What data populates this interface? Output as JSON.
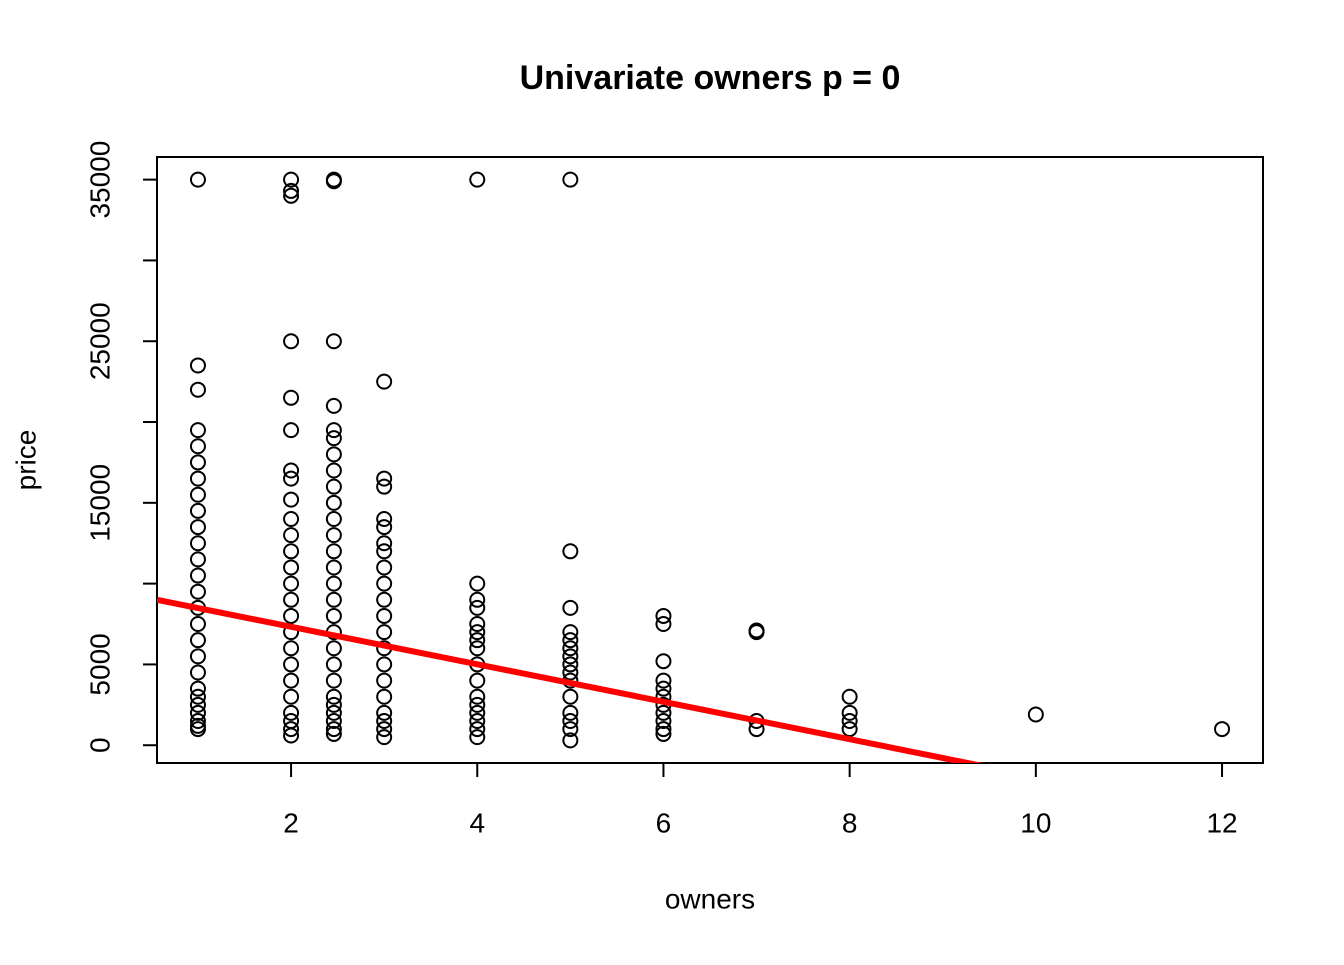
{
  "chart_data": {
    "type": "scatter",
    "title": "Univariate owners p = 0",
    "x_label": "owners",
    "y_label": "price",
    "x": [
      1,
      1,
      1,
      1,
      1,
      1,
      1,
      1,
      1,
      1,
      1,
      1,
      1,
      1,
      1,
      1,
      1,
      1,
      1,
      1,
      1,
      1,
      1,
      1,
      1,
      1,
      2,
      2,
      2,
      2,
      2,
      2,
      2,
      2,
      2,
      2,
      2,
      2,
      2,
      2,
      2,
      2,
      2,
      2,
      2,
      2,
      2,
      2,
      2,
      2,
      2,
      2.46,
      2.46,
      2.46,
      2.46,
      2.46,
      2.46,
      2.46,
      2.46,
      2.46,
      2.46,
      2.46,
      2.46,
      2.46,
      2.46,
      2.46,
      2.46,
      2.46,
      2.46,
      2.46,
      2.46,
      2.46,
      2.46,
      2.46,
      2.46,
      2.46,
      2.46,
      2.46,
      3,
      3,
      3,
      3,
      3,
      3,
      3,
      3,
      3,
      3,
      3,
      3,
      3,
      3,
      3,
      3,
      3,
      3,
      3,
      3,
      4,
      4,
      4,
      4,
      4,
      4,
      4,
      4,
      4,
      4,
      4,
      4,
      4,
      4,
      4,
      4,
      5,
      5,
      5,
      5,
      5,
      5,
      5,
      5,
      5,
      5,
      5,
      5,
      5,
      5,
      5,
      6,
      6,
      6,
      6,
      6,
      6,
      6,
      6,
      6,
      6,
      6,
      7,
      7,
      7,
      7,
      8,
      8,
      8,
      8,
      10,
      12
    ],
    "values": [
      35000,
      23500,
      22000,
      19500,
      18500,
      17500,
      16500,
      15500,
      14500,
      13500,
      12500,
      11500,
      10500,
      9500,
      8500,
      7500,
      6500,
      5500,
      4500,
      3500,
      3000,
      2500,
      2000,
      1500,
      1200,
      1000,
      35000,
      34300,
      34000,
      25000,
      21500,
      19500,
      17000,
      16500,
      15200,
      14000,
      13000,
      12000,
      11000,
      10000,
      9000,
      8000,
      7000,
      6000,
      5000,
      4000,
      3000,
      2000,
      1500,
      1000,
      600,
      35000,
      34900,
      25000,
      21000,
      19500,
      19000,
      18000,
      17000,
      16000,
      15000,
      14000,
      13000,
      12000,
      11000,
      10000,
      9000,
      8000,
      7000,
      6000,
      5000,
      4000,
      3000,
      2500,
      2000,
      1500,
      1000,
      700,
      22500,
      16500,
      16000,
      14000,
      13500,
      12500,
      12000,
      11000,
      10000,
      9000,
      8000,
      7000,
      6000,
      5000,
      4000,
      3000,
      2000,
      1500,
      1000,
      500,
      35000,
      10000,
      9000,
      8500,
      7500,
      7000,
      6500,
      6000,
      5000,
      4000,
      3000,
      2500,
      2000,
      1500,
      1000,
      500,
      35000,
      12000,
      8500,
      7000,
      6500,
      6000,
      5500,
      5000,
      4500,
      4000,
      3000,
      2000,
      1500,
      1000,
      300,
      8000,
      7500,
      5200,
      4000,
      3500,
      3000,
      2500,
      2000,
      1500,
      1000,
      700,
      7100,
      7000,
      1500,
      1000,
      3000,
      2000,
      1500,
      1000,
      1900,
      1000
    ],
    "color": "#000000",
    "trend_line": {
      "intercept": 9650,
      "slope": -1160,
      "color": "#ff0000"
    },
    "xlim": [
      0.56,
      12.44
    ],
    "xticks": [
      2,
      4,
      6,
      8,
      10,
      12
    ],
    "ylim": [
      -1100,
      36400
    ],
    "yticks": [
      0,
      5000,
      {
        "value": 10000,
        "label": null
      },
      15000,
      {
        "value": 20000,
        "label": null
      },
      25000,
      {
        "value": 30000,
        "label": null
      },
      35000
    ]
  }
}
